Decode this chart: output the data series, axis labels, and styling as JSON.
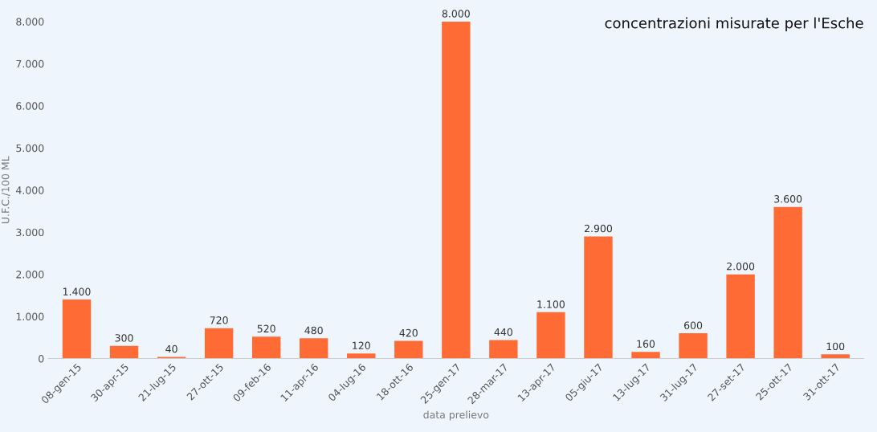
{
  "chart_data": {
    "type": "bar",
    "xlabel": "data prelievo",
    "ylabel": "U.F.C./100 ML",
    "categories": [
      "08-gen-15",
      "30-apr-15",
      "21-lug-15",
      "27-ott-15",
      "09-feb-16",
      "11-apr-16",
      "04-lug-16",
      "18-ott-16",
      "25-gen-17",
      "28-mar-17",
      "13-apr-17",
      "05-giu-17",
      "13-lug-17",
      "31-lug-17",
      "27-set-17",
      "25-ott-17",
      "31-ott-17"
    ],
    "values": [
      1400,
      300,
      40,
      720,
      520,
      480,
      120,
      420,
      8000,
      440,
      1100,
      2900,
      160,
      600,
      2000,
      3600,
      100
    ],
    "value_labels": [
      "1.400",
      "300",
      "40",
      "720",
      "520",
      "480",
      "120",
      "420",
      "8.000",
      "440",
      "1.100",
      "2.900",
      "160",
      "600",
      "2.000",
      "3.600",
      "100"
    ],
    "color": "#ff6b35",
    "ylim": [
      0,
      8000
    ],
    "yticks": [
      {
        "value": 0,
        "label": "0"
      },
      {
        "value": 1000,
        "label": "1.000"
      },
      {
        "value": 2000,
        "label": "2.000"
      },
      {
        "value": 3000,
        "label": "3.000"
      },
      {
        "value": 4000,
        "label": "4.000"
      },
      {
        "value": 5000,
        "label": "5.000"
      },
      {
        "value": 6000,
        "label": "6.000"
      },
      {
        "value": 7000,
        "label": "7.000"
      },
      {
        "value": 8000,
        "label": "8.000"
      }
    ],
    "annotations": [
      "concentrazioni misurate per l'Esche"
    ],
    "grid": false
  }
}
